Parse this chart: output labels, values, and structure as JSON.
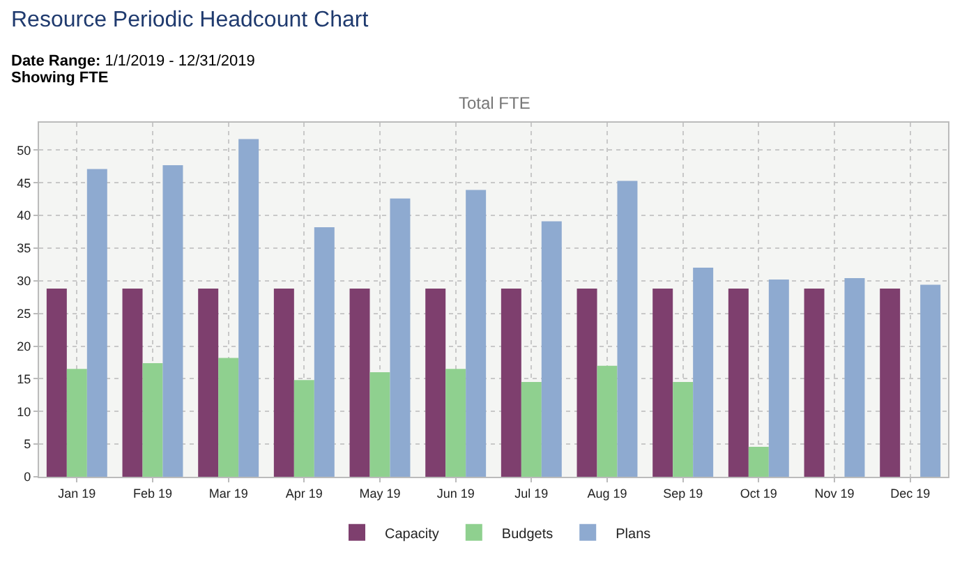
{
  "chart_data": {
    "type": "bar",
    "title": "Resource Periodic Headcount Chart",
    "subtitle": "Date Range: 1/1/2019 - 12/31/2019",
    "annotations": [
      "Showing FTE",
      "Total FTE"
    ],
    "categories": [
      "Jan 19",
      "Feb 19",
      "Mar 19",
      "Apr 19",
      "May 19",
      "Jun 19",
      "Jul 19",
      "Aug 19",
      "Sep 19",
      "Oct 19",
      "Nov 19",
      "Dec 19"
    ],
    "series": [
      {
        "name": "Capacity",
        "color": "#7e3f6e",
        "values": [
          28.8,
          28.8,
          28.8,
          28.8,
          28.8,
          28.8,
          28.8,
          28.8,
          28.8,
          28.8,
          28.8,
          28.8
        ]
      },
      {
        "name": "Budgets",
        "color": "#8fd08f",
        "values": [
          16.5,
          17.4,
          18.2,
          14.8,
          16.0,
          16.5,
          14.5,
          17.0,
          14.5,
          4.6,
          0,
          0
        ]
      },
      {
        "name": "Plans",
        "color": "#8eaad0",
        "values": [
          47.1,
          47.7,
          51.7,
          38.2,
          42.6,
          43.9,
          39.1,
          45.3,
          32.0,
          30.2,
          30.4,
          29.4
        ]
      }
    ],
    "ylim": [
      0,
      54.2
    ],
    "yticks": [
      0,
      5,
      10,
      15,
      20,
      25,
      30,
      35,
      40,
      45,
      50
    ],
    "grid": true,
    "legend": "bottom"
  }
}
